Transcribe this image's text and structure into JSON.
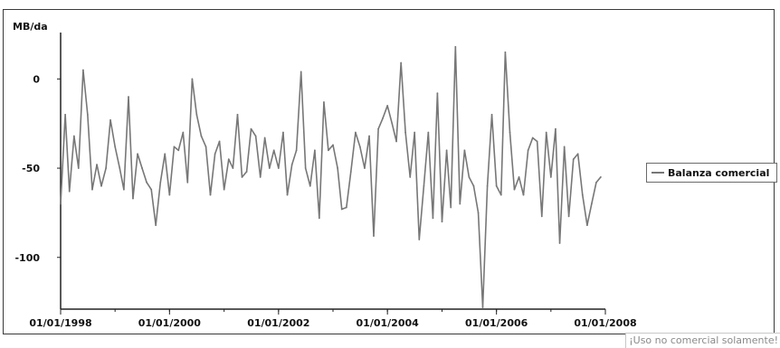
{
  "chart_data": {
    "type": "line",
    "unit_label": "MB/da",
    "x_tick_labels": [
      "01/01/1998",
      "01/01/2000",
      "01/01/2002",
      "01/01/2004",
      "01/01/2006",
      "01/01/2008"
    ],
    "x_range": [
      "1998-01-01",
      "2008-01-01"
    ],
    "y_ticks": [
      0,
      -50,
      -100
    ],
    "y_tick_labels": [
      "0",
      "-50",
      "-100"
    ],
    "ylim": [
      -129,
      25
    ],
    "grid": false,
    "legend_position": "right",
    "series": [
      {
        "name": "Balanza comercial",
        "color": "#777777",
        "x": [
          "1998-01",
          "1998-02",
          "1998-03",
          "1998-04",
          "1998-05",
          "1998-06",
          "1998-07",
          "1998-08",
          "1998-09",
          "1998-10",
          "1998-11",
          "1998-12",
          "1999-01",
          "1999-02",
          "1999-03",
          "1999-04",
          "1999-05",
          "1999-06",
          "1999-07",
          "1999-08",
          "1999-09",
          "1999-10",
          "1999-11",
          "1999-12",
          "2000-01",
          "2000-02",
          "2000-03",
          "2000-04",
          "2000-05",
          "2000-06",
          "2000-07",
          "2000-08",
          "2000-09",
          "2000-10",
          "2000-11",
          "2000-12",
          "2001-01",
          "2001-02",
          "2001-03",
          "2001-04",
          "2001-05",
          "2001-06",
          "2001-07",
          "2001-08",
          "2001-09",
          "2001-10",
          "2001-11",
          "2001-12",
          "2002-01",
          "2002-02",
          "2002-03",
          "2002-04",
          "2002-05",
          "2002-06",
          "2002-07",
          "2002-08",
          "2002-09",
          "2002-10",
          "2002-11",
          "2002-12",
          "2003-01",
          "2003-02",
          "2003-03",
          "2003-04",
          "2003-05",
          "2003-06",
          "2003-07",
          "2003-08",
          "2003-09",
          "2003-10",
          "2003-11",
          "2003-12",
          "2004-01",
          "2004-02",
          "2004-03",
          "2004-04",
          "2004-05",
          "2004-06",
          "2004-07",
          "2004-08",
          "2004-09",
          "2004-10",
          "2004-11",
          "2004-12",
          "2005-01",
          "2005-02",
          "2005-03",
          "2005-04",
          "2005-05",
          "2005-06",
          "2005-07",
          "2005-08",
          "2005-09",
          "2005-10",
          "2005-11",
          "2005-12",
          "2006-01",
          "2006-02",
          "2006-03",
          "2006-04",
          "2006-05",
          "2006-06",
          "2006-07",
          "2006-08",
          "2006-09",
          "2006-10",
          "2006-11",
          "2006-12",
          "2007-01",
          "2007-02",
          "2007-03",
          "2007-04",
          "2007-05",
          "2007-06",
          "2007-07",
          "2007-08",
          "2007-09",
          "2007-10",
          "2007-11",
          "2007-12"
        ],
        "values": [
          -70,
          -20,
          -63,
          -32,
          -50,
          5,
          -20,
          -62,
          -48,
          -60,
          -50,
          -23,
          -38,
          -50,
          -62,
          -10,
          -67,
          -42,
          -50,
          -58,
          -62,
          -82,
          -58,
          -42,
          -65,
          -38,
          -40,
          -30,
          -58,
          0,
          -20,
          -32,
          -38,
          -65,
          -42,
          -35,
          -62,
          -45,
          -50,
          -20,
          -55,
          -52,
          -28,
          -32,
          -55,
          -33,
          -50,
          -40,
          -50,
          -30,
          -65,
          -48,
          -40,
          4,
          -50,
          -60,
          -40,
          -78,
          -13,
          -40,
          -37,
          -50,
          -73,
          -72,
          -52,
          -30,
          -38,
          -50,
          -32,
          -88,
          -28,
          -22,
          -15,
          -25,
          -35,
          9,
          -30,
          -55,
          -30,
          -90,
          -60,
          -30,
          -78,
          -8,
          -80,
          -40,
          -72,
          18,
          -70,
          -40,
          -55,
          -60,
          -75,
          -128,
          -60,
          -20,
          -60,
          -65,
          15,
          -30,
          -62,
          -55,
          -65,
          -40,
          -33,
          -35,
          -77,
          -30,
          -55,
          -28,
          -92,
          -38,
          -77,
          -45,
          -42,
          -65,
          -82,
          -70,
          -58,
          -55
        ]
      }
    ]
  },
  "watermark": "¡Uso no comercial solamente!"
}
